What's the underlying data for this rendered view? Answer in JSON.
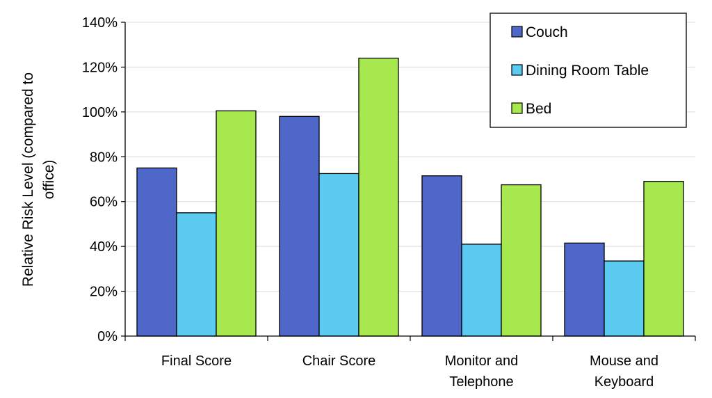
{
  "chart_data": {
    "type": "bar",
    "title": "",
    "xlabel": "",
    "ylabel_lines": [
      "Relative Risk Level (compared to",
      "office)"
    ],
    "categories": [
      [
        "Final Score"
      ],
      [
        "Chair Score"
      ],
      [
        "Monitor and",
        "Telephone"
      ],
      [
        "Mouse and",
        "Keyboard"
      ]
    ],
    "series": [
      {
        "name": "Couch",
        "color": "#4f67c9",
        "values": [
          0.75,
          0.98,
          0.715,
          0.415
        ]
      },
      {
        "name": "Dining Room Table",
        "color": "#5bcbf2",
        "values": [
          0.55,
          0.725,
          0.41,
          0.335
        ]
      },
      {
        "name": "Bed",
        "color": "#a6e84e",
        "values": [
          1.005,
          1.24,
          0.675,
          0.69
        ]
      }
    ],
    "ylim": [
      0,
      1.4
    ],
    "yticks": [
      "0%",
      "20%",
      "40%",
      "60%",
      "80%",
      "100%",
      "120%",
      "140%"
    ],
    "grid": true,
    "legend_position": "top-right"
  }
}
